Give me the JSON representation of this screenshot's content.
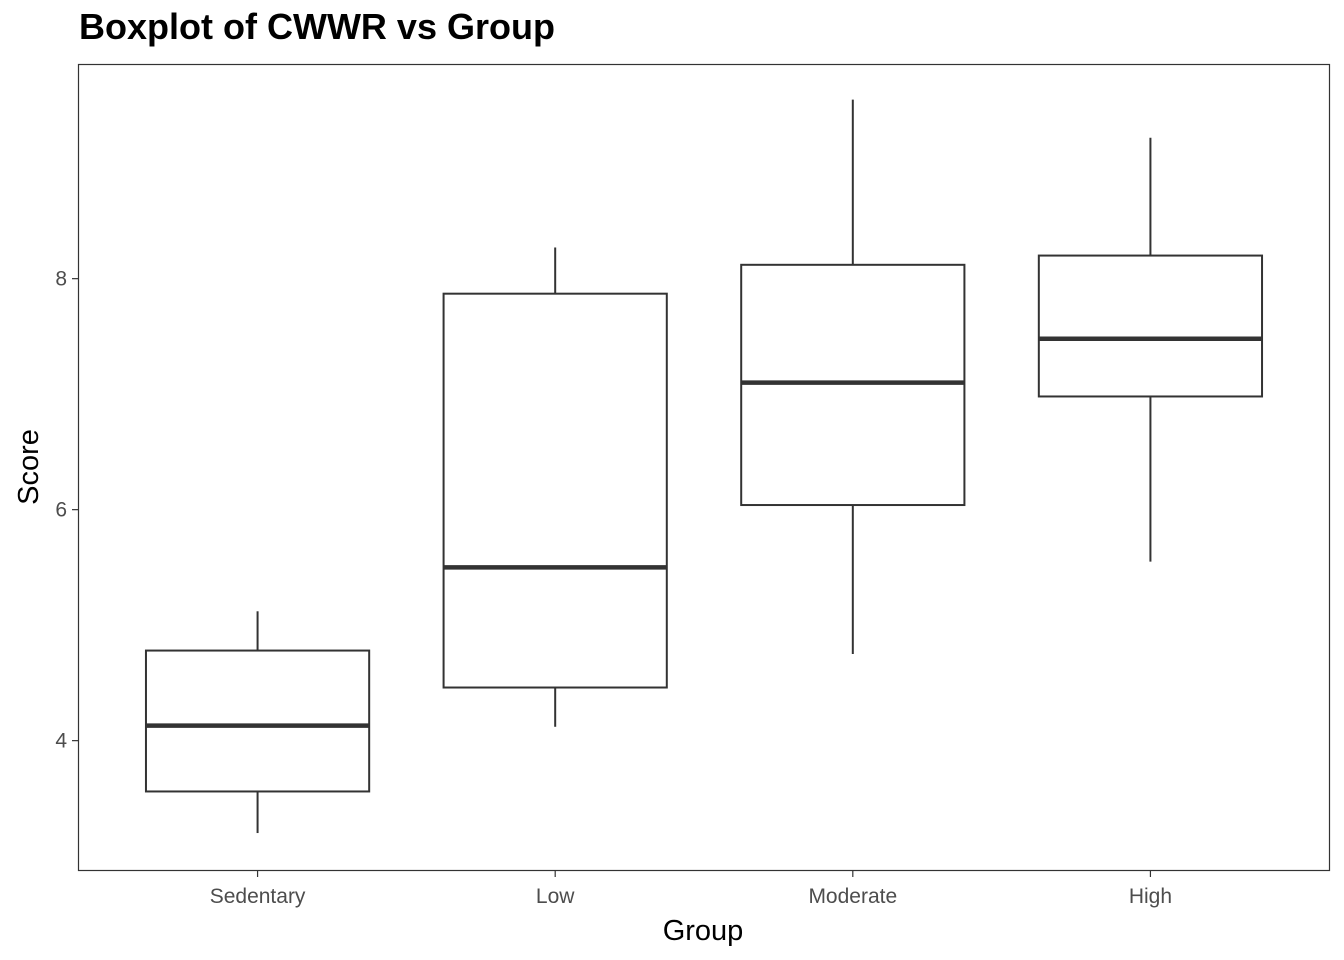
{
  "chart_data": {
    "type": "box",
    "title": "Boxplot of CWWR vs Group",
    "xlabel": "Group",
    "ylabel": "Score",
    "categories": [
      "Sedentary",
      "Low",
      "Moderate",
      "High"
    ],
    "ylim": [
      2.88,
      9.85
    ],
    "yticks": [
      4,
      6,
      8
    ],
    "ytick_labels": [
      "4",
      "6",
      "8"
    ],
    "boxes": [
      {
        "category": "Sedentary",
        "whisker_low": 3.2,
        "q1": 3.56,
        "median": 4.13,
        "q3": 4.78,
        "whisker_high": 5.12
      },
      {
        "category": "Low",
        "whisker_low": 4.12,
        "q1": 4.46,
        "median": 5.5,
        "q3": 7.87,
        "whisker_high": 8.27
      },
      {
        "category": "Moderate",
        "whisker_low": 4.75,
        "q1": 6.04,
        "median": 7.1,
        "q3": 8.12,
        "whisker_high": 9.55
      },
      {
        "category": "High",
        "whisker_low": 5.55,
        "q1": 6.98,
        "median": 7.48,
        "q3": 8.2,
        "whisker_high": 9.22
      }
    ],
    "grid": false,
    "legend": "none"
  },
  "colors": {
    "box_stroke": "#333333",
    "panel_border": "#333333",
    "tick_label": "#4d4d4d",
    "axis_title": "#000000"
  }
}
